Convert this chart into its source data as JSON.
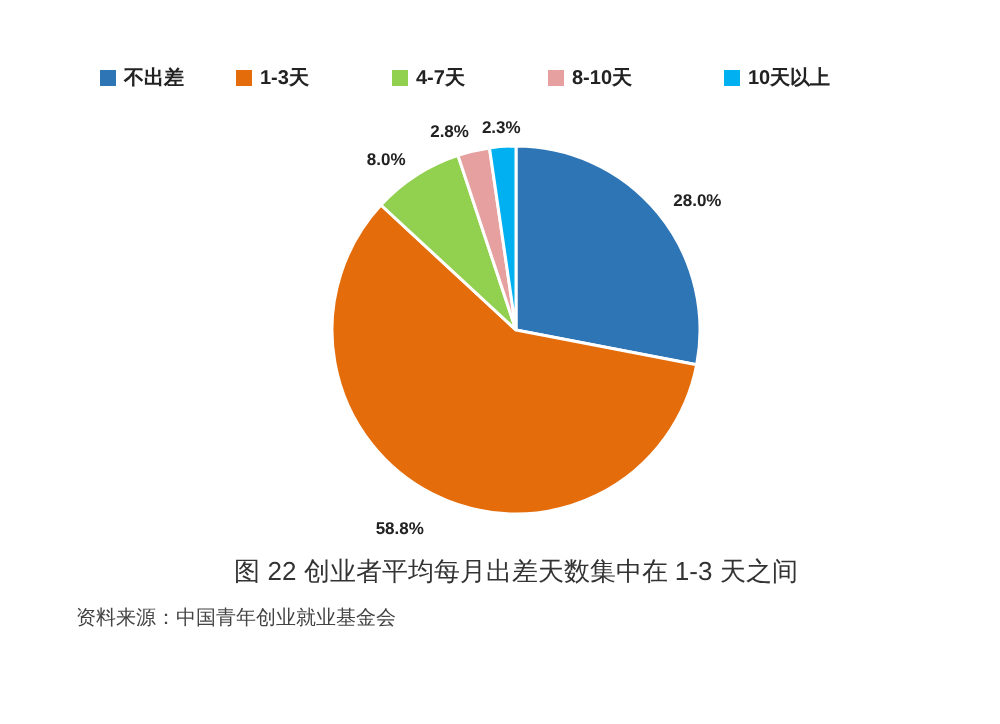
{
  "chart_data": {
    "type": "pie",
    "title": "图 22  创业者平均每月出差天数集中在 1-3 天之间",
    "annotations": [
      "资料来源：中国青年创业就业基金会"
    ],
    "categories": [
      "不出差",
      "1-3天",
      "4-7天",
      "8-10天",
      "10天以上"
    ],
    "values": [
      28.0,
      58.8,
      8.0,
      2.8,
      2.3
    ],
    "value_labels": [
      "28.0%",
      "58.8%",
      "8.0%",
      "2.8%",
      "2.3%"
    ],
    "colors": [
      "#2e75b6",
      "#e46c0a",
      "#92d050",
      "#e6a0a0",
      "#00b0f0"
    ],
    "legend": "top"
  }
}
